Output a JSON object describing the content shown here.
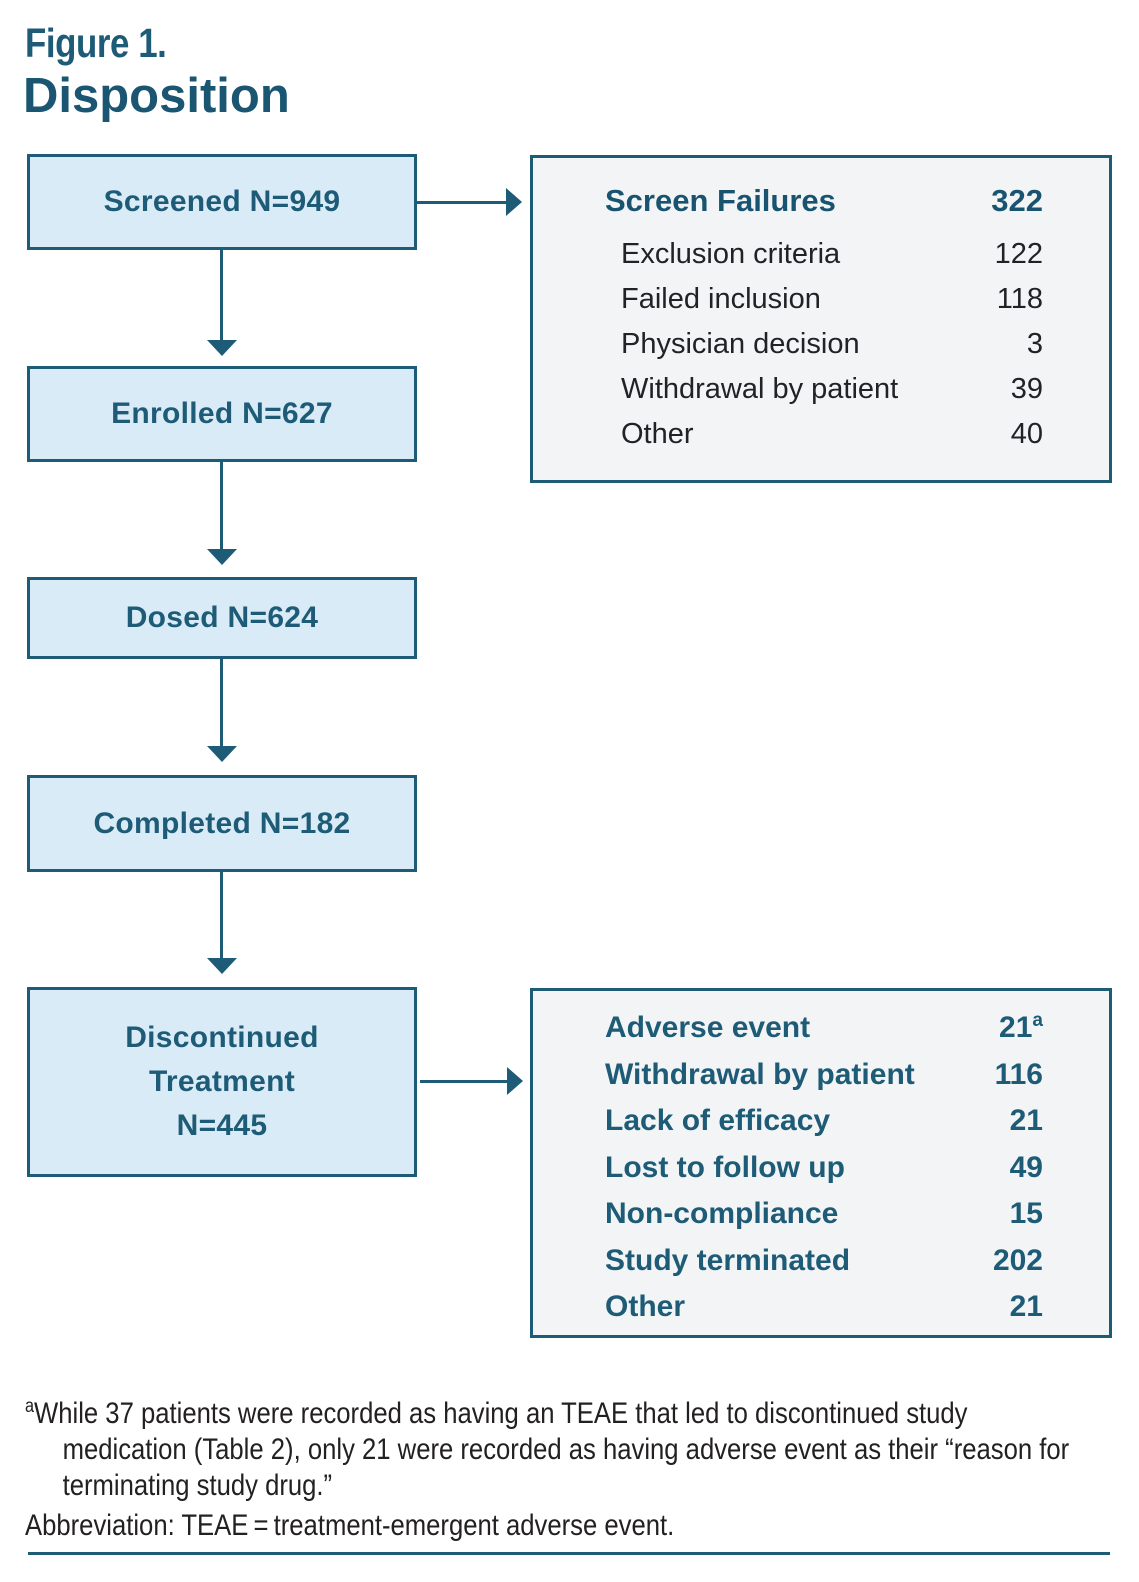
{
  "colors": {
    "accent_teal": "#1d5b76",
    "header_teal": "#18546f",
    "flow_box_fill": "#d9ebf6",
    "detail_box_fill": "#f3f4f6",
    "body_text": "#202225"
  },
  "figure": {
    "label": "Figure 1.",
    "title": "Disposition"
  },
  "flow_boxes": {
    "screened": "Screened N=949",
    "enrolled": "Enrolled N=627",
    "dosed": "Dosed N=624",
    "completed": "Completed N=182",
    "discontinued_lines": [
      "Discontinued",
      "Treatment",
      "N=445"
    ]
  },
  "screen_failures": {
    "header_label": "Screen Failures",
    "header_value": "322",
    "items": [
      {
        "label": "Exclusion criteria",
        "value": "122"
      },
      {
        "label": "Failed inclusion",
        "value": "118"
      },
      {
        "label": "Physician decision",
        "value": "3"
      },
      {
        "label": "Withdrawal by patient",
        "value": "39"
      },
      {
        "label": "Other",
        "value": "40"
      }
    ]
  },
  "discontinuation_reasons": {
    "items": [
      {
        "label": "Adverse event",
        "value": "21",
        "superscript": "a"
      },
      {
        "label": "Withdrawal by patient",
        "value": "116"
      },
      {
        "label": "Lack of efficacy",
        "value": "21"
      },
      {
        "label": "Lost to follow up",
        "value": "49"
      },
      {
        "label": "Non-compliance",
        "value": "15"
      },
      {
        "label": "Study terminated",
        "value": "202"
      },
      {
        "label": "Other",
        "value": "21"
      }
    ]
  },
  "footnote": {
    "superscript": "a",
    "lines": [
      "While 37 patients were recorded as having an TEAE that led to discontinued study",
      "medication (Table 2), only 21 were recorded as having adverse event as their “reason for",
      "terminating study drug.”"
    ],
    "abbreviation": "Abbreviation: TEAE = treatment-emergent adverse event."
  }
}
